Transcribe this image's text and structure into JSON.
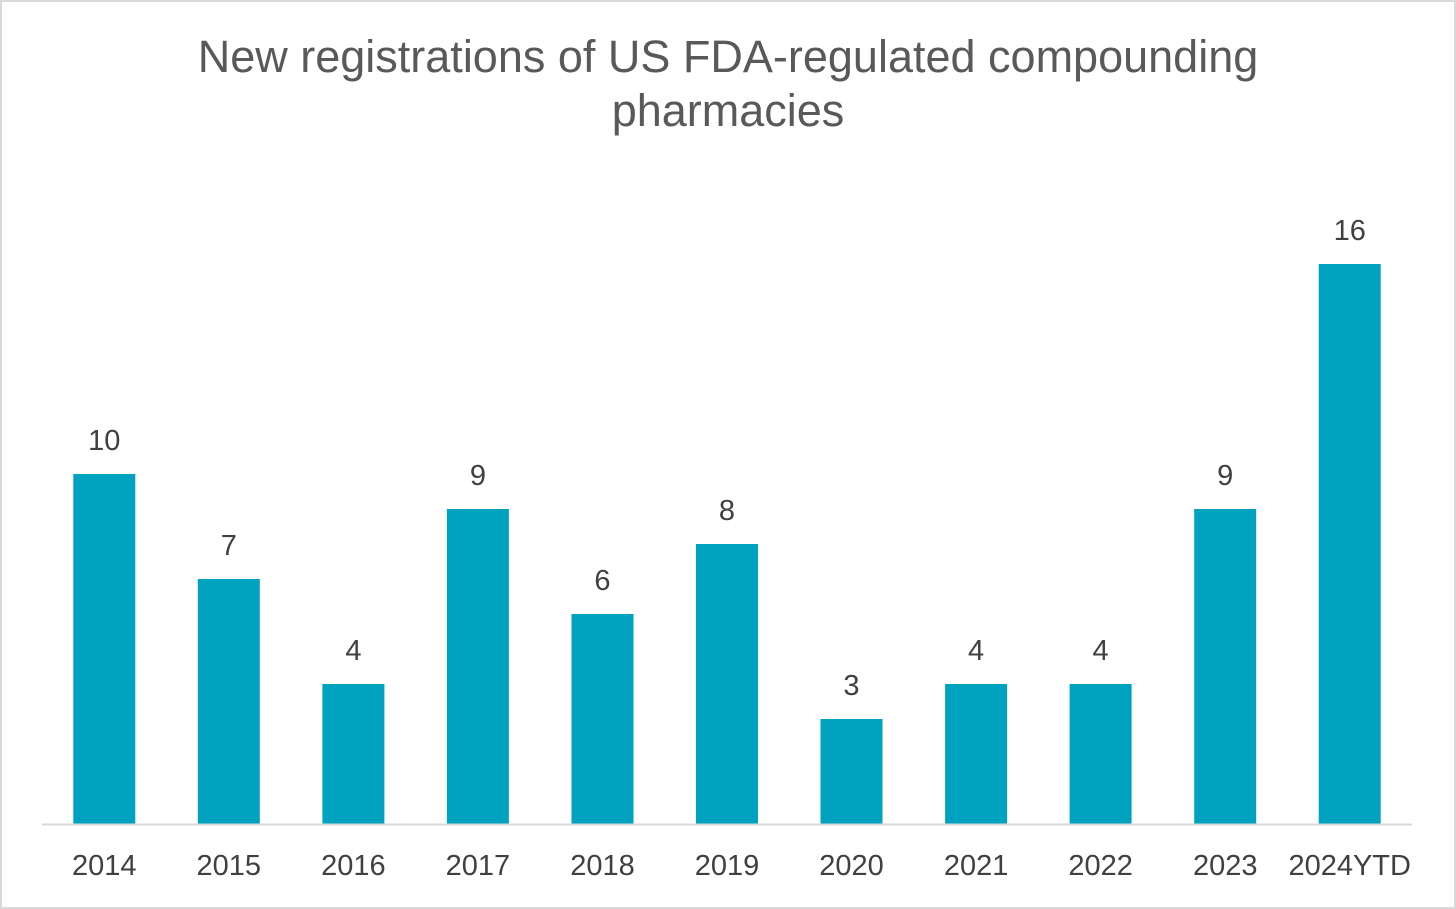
{
  "chart_data": {
    "type": "bar",
    "title_line1": "New registrations of US FDA-regulated compounding",
    "title_line2": "pharmacies",
    "categories": [
      "2014",
      "2015",
      "2016",
      "2017",
      "2018",
      "2019",
      "2020",
      "2021",
      "2022",
      "2023",
      "2024YTD"
    ],
    "values": [
      10,
      7,
      4,
      9,
      6,
      8,
      3,
      4,
      4,
      9,
      16
    ],
    "xlabel": "",
    "ylabel": "",
    "ylim": [
      0,
      16
    ],
    "grid": false,
    "legend": "none",
    "data_labels": true,
    "colors": {
      "bar": "#00A3BF",
      "axis": "#d9d9d9",
      "text": "#404040",
      "title": "#595959"
    }
  }
}
